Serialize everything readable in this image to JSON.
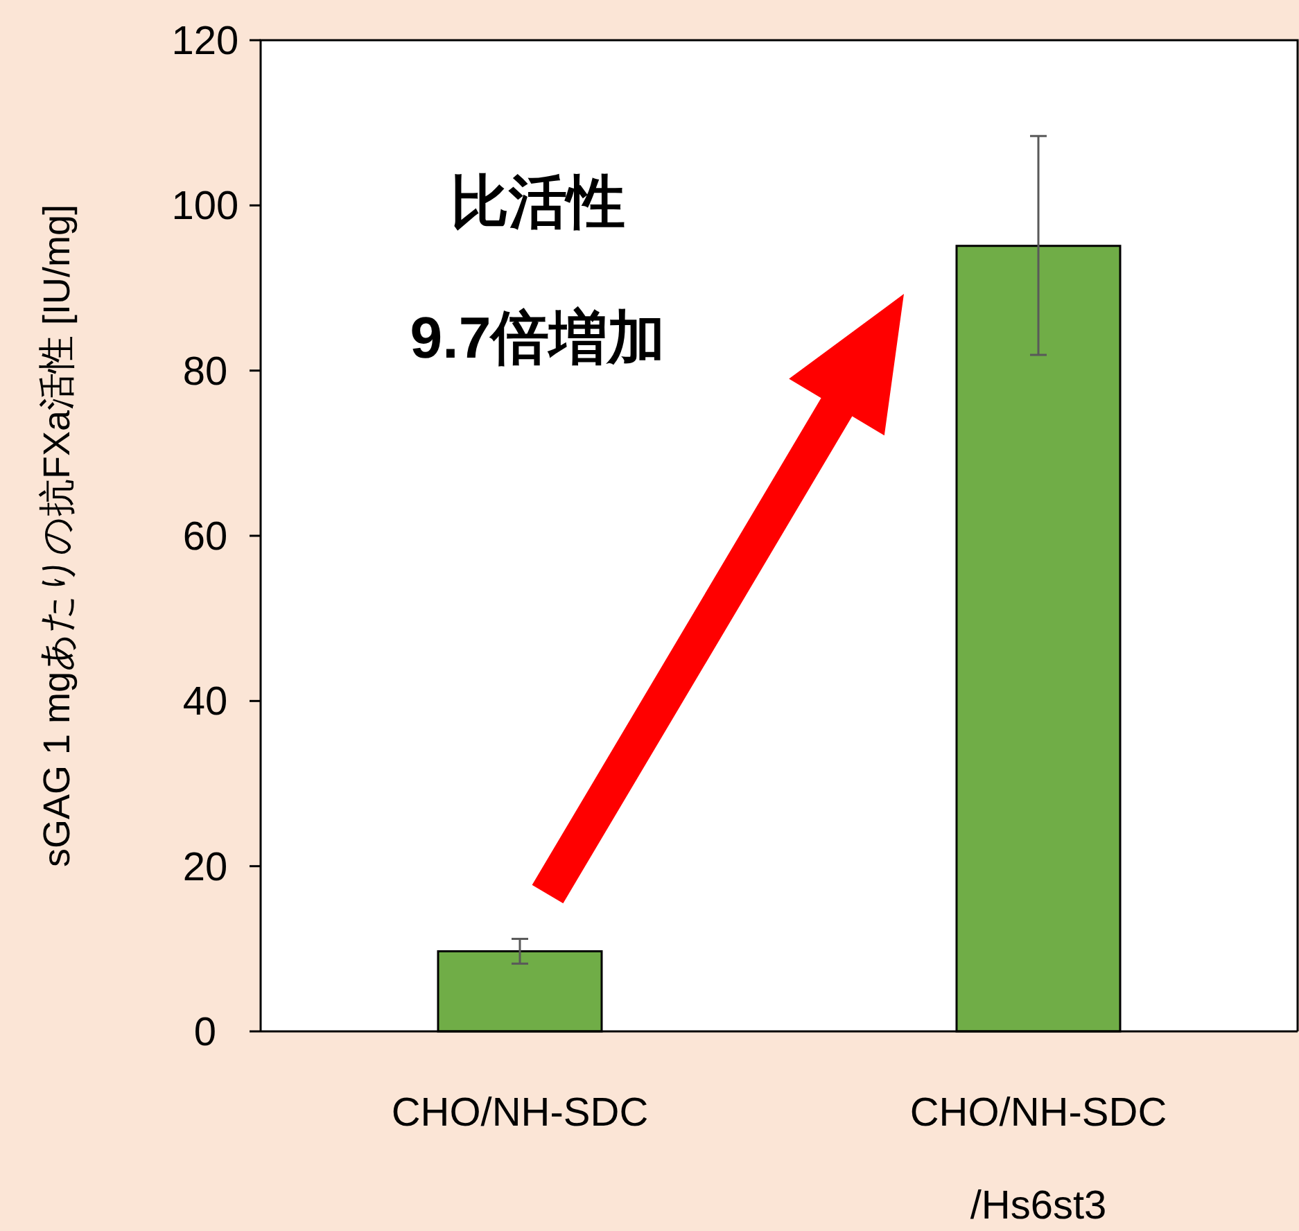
{
  "chart_data": {
    "type": "bar",
    "categories": [
      "CHO/NH-SDC",
      "CHO/NH-SDC /Hs6st3"
    ],
    "values": [
      9.7,
      95.1
    ],
    "errors": [
      [
        8.2,
        11.2
      ],
      [
        81.9,
        108.4
      ]
    ],
    "color": "#70ad47",
    "ylabel": "sGAG 1 mgあたりの抗FXa活性 [IU/mg]",
    "ylim": [
      0,
      120
    ],
    "yticks": [
      0,
      20,
      40,
      60,
      80,
      100,
      120
    ],
    "annotations": [
      "比活性",
      "9.7倍増加"
    ]
  }
}
